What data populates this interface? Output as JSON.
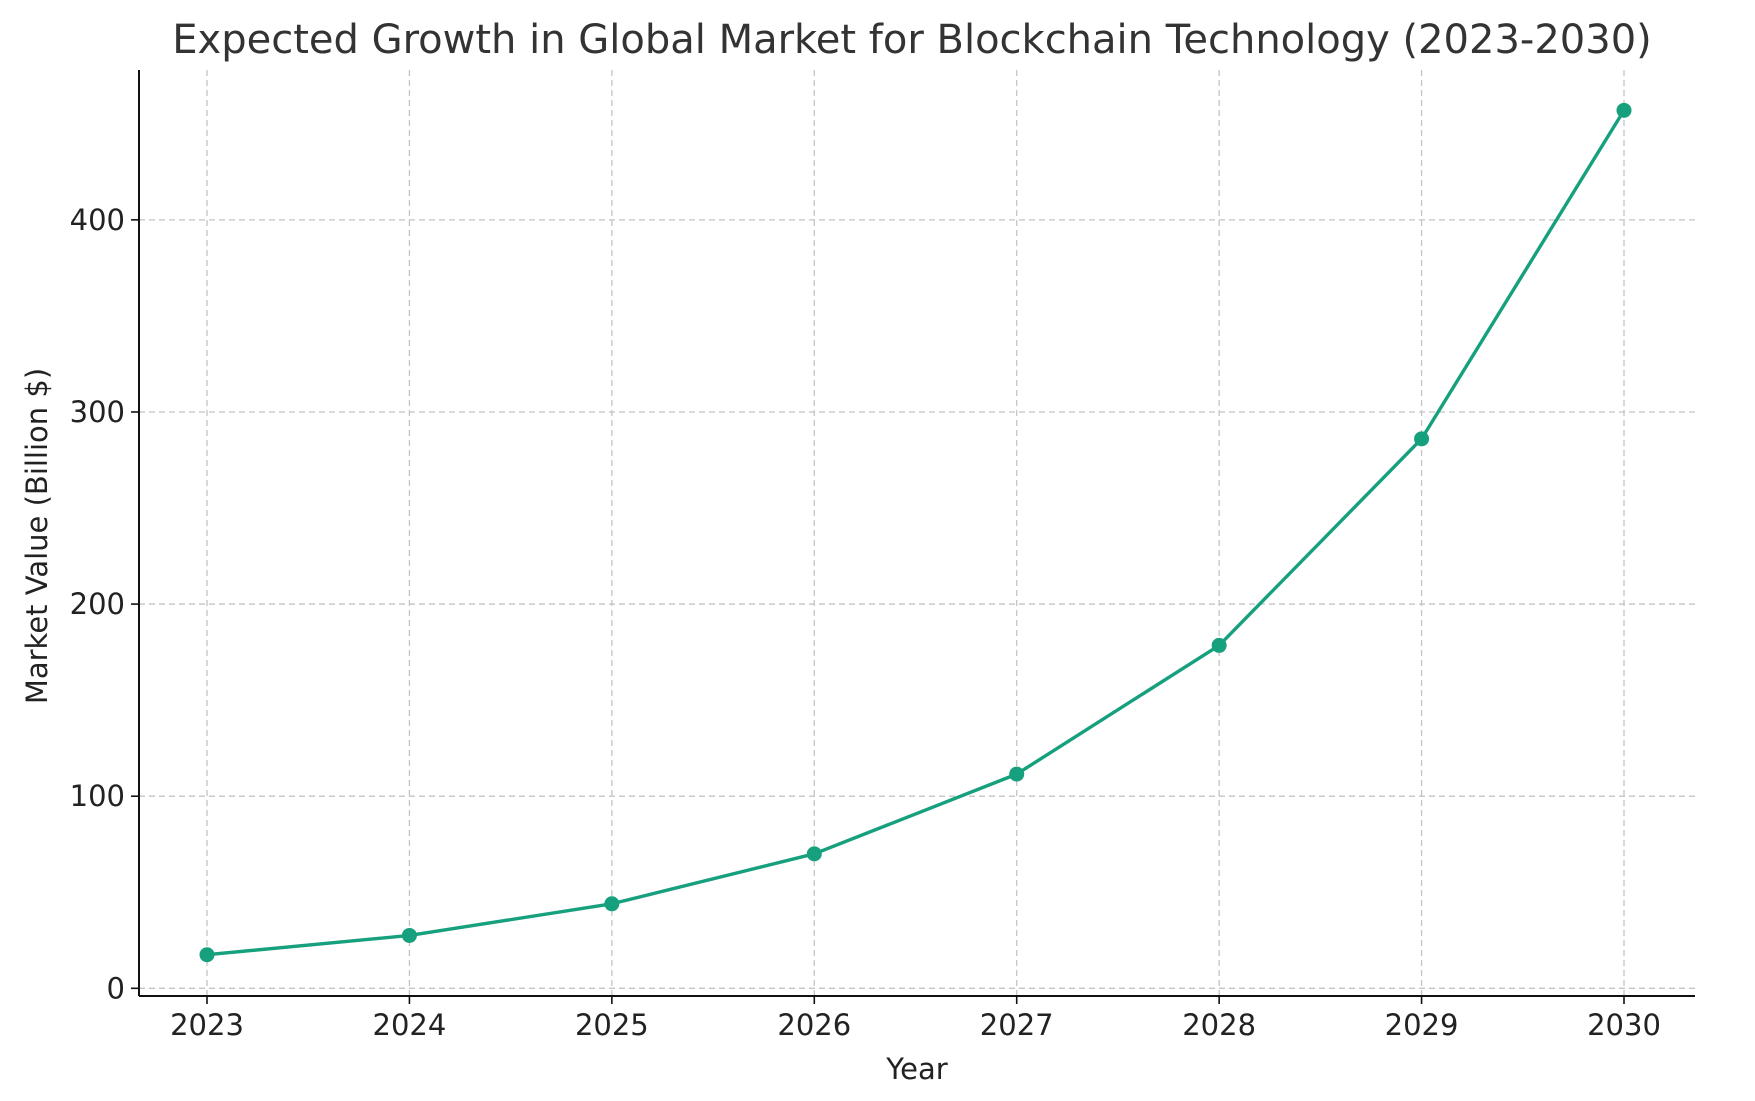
{
  "chart_data": {
    "type": "line",
    "title": "Expected Growth in Global Market for Blockchain Technology (2023-2030)",
    "xlabel": "Year",
    "ylabel": "Market Value (Billion $)",
    "x": [
      2023,
      2024,
      2025,
      2026,
      2027,
      2028,
      2029,
      2030
    ],
    "x_tick_labels": [
      "2023",
      "2024",
      "2025",
      "2026",
      "2027",
      "2028",
      "2029",
      "2030"
    ],
    "y_ticks": [
      0,
      100,
      200,
      300,
      400
    ],
    "y_tick_labels": [
      "0",
      "100",
      "200",
      "300",
      "400"
    ],
    "ylim": [
      -4,
      478
    ],
    "grid": true,
    "series": [
      {
        "name": "Market Value",
        "color": "#17a07e",
        "values": [
          17.5,
          27.5,
          44,
          70,
          111.5,
          178.5,
          286,
          457
        ]
      }
    ]
  }
}
